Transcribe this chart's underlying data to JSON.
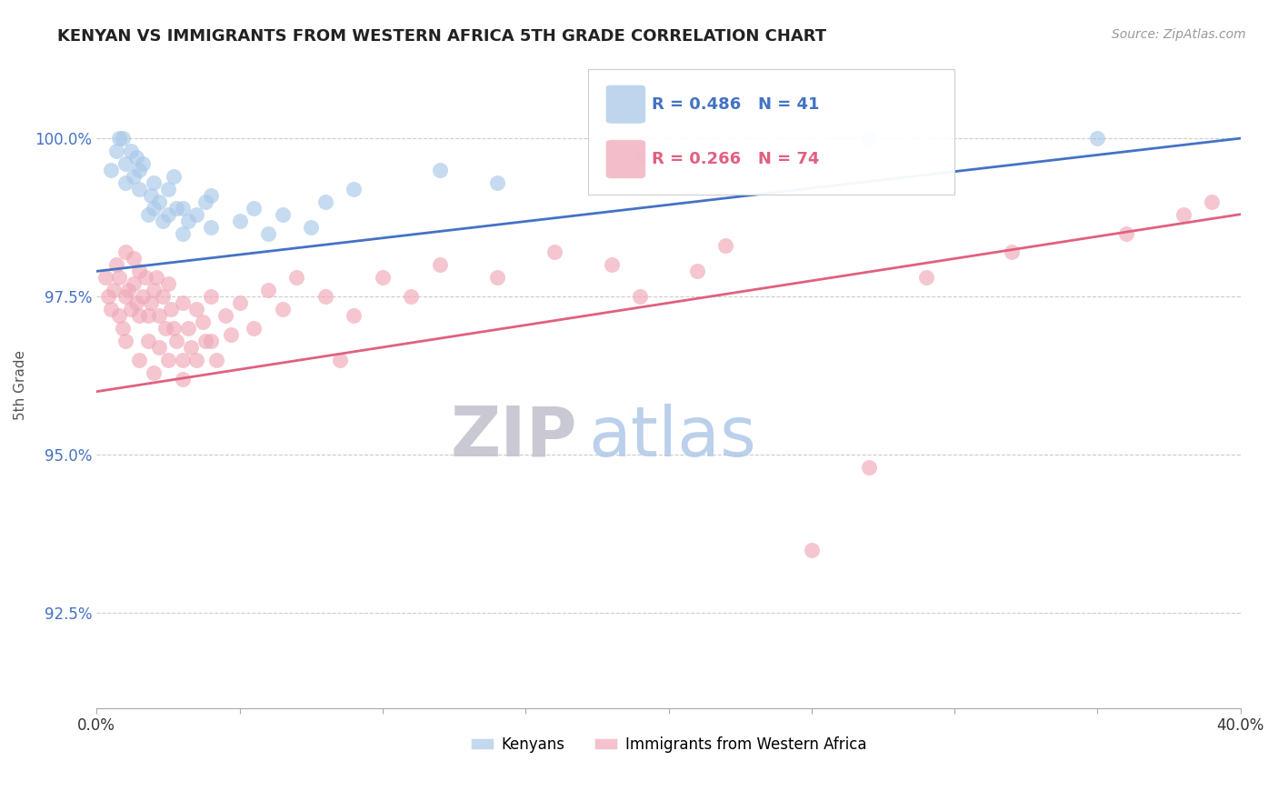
{
  "title": "KENYAN VS IMMIGRANTS FROM WESTERN AFRICA 5TH GRADE CORRELATION CHART",
  "source_text": "Source: ZipAtlas.com",
  "ylabel": "5th Grade",
  "xlim": [
    0.0,
    0.4
  ],
  "ylim": [
    91.0,
    101.2
  ],
  "yticks": [
    92.5,
    95.0,
    97.5,
    100.0
  ],
  "yticklabels": [
    "92.5%",
    "95.0%",
    "97.5%",
    "100.0%"
  ],
  "blue_R": 0.486,
  "blue_N": 41,
  "pink_R": 0.266,
  "pink_N": 74,
  "blue_color": "#a8c8e8",
  "pink_color": "#f0a8b8",
  "blue_line_color": "#4472c4",
  "pink_line_color": "#e06080",
  "legend_blue_label": "Kenyans",
  "legend_pink_label": "Immigrants from Western Africa",
  "watermark_zip_color": "#c8c8d8",
  "watermark_atlas_color": "#a8c0e0",
  "blue_x": [
    0.005,
    0.007,
    0.008,
    0.009,
    0.01,
    0.01,
    0.012,
    0.013,
    0.014,
    0.015,
    0.015,
    0.016,
    0.018,
    0.019,
    0.02,
    0.02,
    0.022,
    0.023,
    0.025,
    0.025,
    0.027,
    0.028,
    0.03,
    0.03,
    0.032,
    0.035,
    0.038,
    0.04,
    0.04,
    0.05,
    0.055,
    0.06,
    0.065,
    0.075,
    0.08,
    0.09,
    0.12,
    0.14,
    0.19,
    0.27,
    0.35
  ],
  "blue_y": [
    99.5,
    99.8,
    100.0,
    100.0,
    99.3,
    99.6,
    99.8,
    99.4,
    99.7,
    99.2,
    99.5,
    99.6,
    98.8,
    99.1,
    98.9,
    99.3,
    99.0,
    98.7,
    99.2,
    98.8,
    99.4,
    98.9,
    98.5,
    98.9,
    98.7,
    98.8,
    99.0,
    98.6,
    99.1,
    98.7,
    98.9,
    98.5,
    98.8,
    98.6,
    99.0,
    99.2,
    99.5,
    99.3,
    99.7,
    100.0,
    100.0
  ],
  "pink_x": [
    0.003,
    0.004,
    0.005,
    0.006,
    0.007,
    0.008,
    0.008,
    0.009,
    0.01,
    0.01,
    0.01,
    0.011,
    0.012,
    0.013,
    0.013,
    0.014,
    0.015,
    0.015,
    0.015,
    0.016,
    0.017,
    0.018,
    0.018,
    0.019,
    0.02,
    0.02,
    0.021,
    0.022,
    0.022,
    0.023,
    0.024,
    0.025,
    0.025,
    0.026,
    0.027,
    0.028,
    0.03,
    0.03,
    0.03,
    0.032,
    0.033,
    0.035,
    0.035,
    0.037,
    0.038,
    0.04,
    0.04,
    0.042,
    0.045,
    0.047,
    0.05,
    0.055,
    0.06,
    0.065,
    0.07,
    0.08,
    0.085,
    0.09,
    0.1,
    0.11,
    0.12,
    0.14,
    0.16,
    0.18,
    0.19,
    0.21,
    0.22,
    0.25,
    0.27,
    0.29,
    0.32,
    0.36,
    0.38,
    0.39
  ],
  "pink_y": [
    97.8,
    97.5,
    97.3,
    97.6,
    98.0,
    97.2,
    97.8,
    97.0,
    98.2,
    97.5,
    96.8,
    97.6,
    97.3,
    98.1,
    97.7,
    97.4,
    97.9,
    97.2,
    96.5,
    97.5,
    97.8,
    97.2,
    96.8,
    97.4,
    97.6,
    96.3,
    97.8,
    97.2,
    96.7,
    97.5,
    97.0,
    97.7,
    96.5,
    97.3,
    97.0,
    96.8,
    97.4,
    96.5,
    96.2,
    97.0,
    96.7,
    97.3,
    96.5,
    97.1,
    96.8,
    97.5,
    96.8,
    96.5,
    97.2,
    96.9,
    97.4,
    97.0,
    97.6,
    97.3,
    97.8,
    97.5,
    96.5,
    97.2,
    97.8,
    97.5,
    98.0,
    97.8,
    98.2,
    98.0,
    97.5,
    97.9,
    98.3,
    93.5,
    94.8,
    97.8,
    98.2,
    98.5,
    98.8,
    99.0
  ]
}
